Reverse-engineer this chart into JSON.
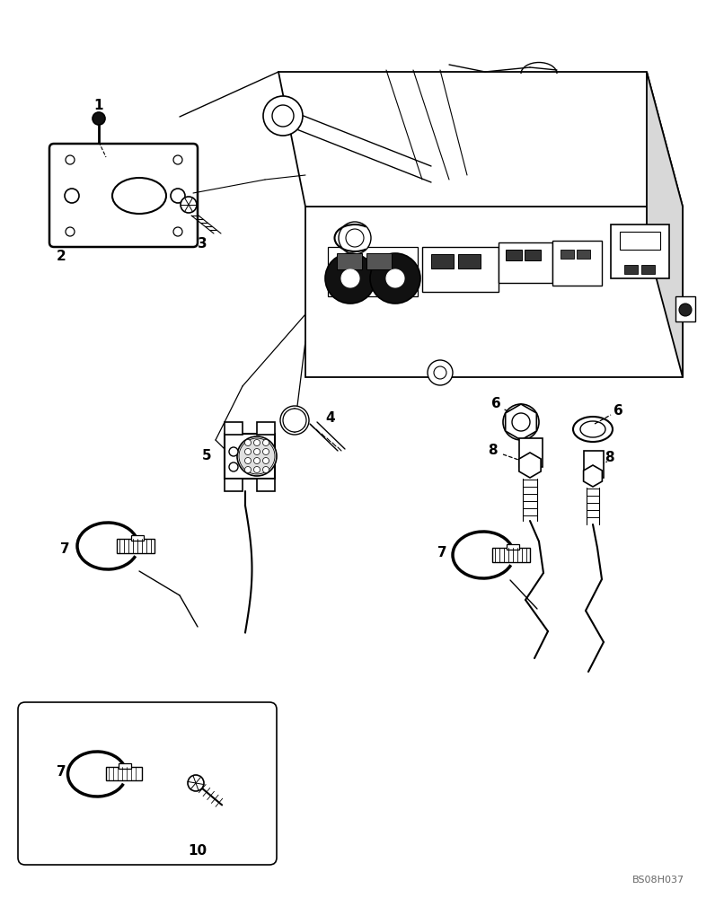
{
  "bg_color": "#ffffff",
  "line_color": "#000000",
  "watermark": "BS08H037",
  "fig_w": 7.96,
  "fig_h": 10.0,
  "dpi": 100
}
